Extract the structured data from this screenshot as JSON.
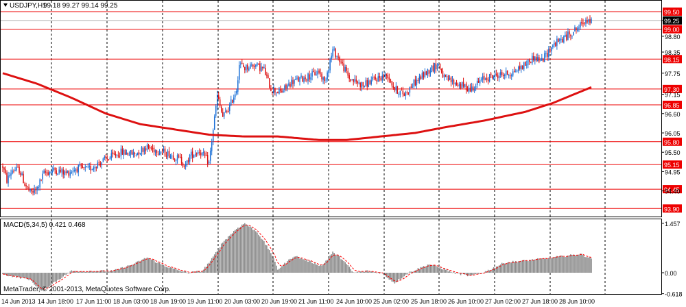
{
  "header": {
    "symbol": "USDJPY,H1",
    "ohlc": "99.18 99.27 99.14 99.25",
    "collapse_icon": "triangle-down-icon"
  },
  "macd": {
    "label": "MACD(5,34,5) 0.421 0.468",
    "copyright": "MetaTrader, © 2001-2013, MetaQuotes Software Corp.",
    "ticks": [
      {
        "value": 1.457,
        "label": "1.457"
      },
      {
        "value": 0.0,
        "label": "0.00"
      },
      {
        "value": -0.618,
        "label": "-0.618"
      }
    ]
  },
  "price_axis": {
    "tick_labels": [
      {
        "value": 99.25,
        "label": "99.25"
      },
      {
        "value": 98.8,
        "label": "98.80"
      },
      {
        "value": 98.35,
        "label": "98.35"
      },
      {
        "value": 97.75,
        "label": "97.75"
      },
      {
        "value": 97.15,
        "label": "97.15"
      },
      {
        "value": 96.6,
        "label": "96.60"
      },
      {
        "value": 96.05,
        "label": "96.05"
      },
      {
        "value": 95.5,
        "label": "95.50"
      },
      {
        "value": 94.95,
        "label": "94.95"
      },
      {
        "value": 94.4,
        "label": "94.40"
      }
    ],
    "levels": [
      {
        "value": 99.5,
        "label": "99.50"
      },
      {
        "value": 99.0,
        "label": "99.00"
      },
      {
        "value": 98.15,
        "label": "98.15"
      },
      {
        "value": 97.3,
        "label": "97.30"
      },
      {
        "value": 96.85,
        "label": "96.85"
      },
      {
        "value": 95.8,
        "label": "95.80"
      },
      {
        "value": 95.15,
        "label": "95.15"
      },
      {
        "value": 94.45,
        "label": "94.45"
      },
      {
        "value": 93.9,
        "label": "93.90"
      }
    ],
    "current": {
      "value": 99.25,
      "label": "99.25"
    }
  },
  "time_axis": {
    "labels": [
      "14 Jun 2013",
      "14 Jun 18:00",
      "17 Jun 11:00",
      "18 Jun 03:00",
      "18 Jun 19:00",
      "19 Jun 11:00",
      "20 Jun 03:00",
      "20 Jun 19:00",
      "21 Jun 11:00",
      "24 Jun 10:00",
      "25 Jun 02:00",
      "25 Jun 18:00",
      "26 Jun 10:00",
      "27 Jun 02:00",
      "27 Jun 18:00",
      "28 Jun 10:00"
    ]
  },
  "colors": {
    "bull": "#1a6fd6",
    "bear": "#dd1111",
    "ma": "#dd1111",
    "level": "#ee0000",
    "histogram": "#8c8c8c",
    "signal": "#ff0000",
    "grid": "#000000"
  },
  "chart_data": {
    "type": "candlestick",
    "timeframe": "H1",
    "price_range": [
      93.9,
      99.7
    ],
    "price_trend": [
      [
        0,
        95.1
      ],
      [
        3,
        94.7
      ],
      [
        7,
        95.0
      ],
      [
        12,
        95.0
      ],
      [
        16,
        94.6
      ],
      [
        20,
        94.35
      ],
      [
        24,
        94.4
      ],
      [
        30,
        94.9
      ],
      [
        38,
        95.0
      ],
      [
        46,
        94.9
      ],
      [
        54,
        95.05
      ],
      [
        62,
        95.0
      ],
      [
        70,
        95.2
      ],
      [
        78,
        95.35
      ],
      [
        86,
        95.5
      ],
      [
        96,
        95.45
      ],
      [
        104,
        95.65
      ],
      [
        113,
        95.55
      ],
      [
        121,
        95.45
      ],
      [
        129,
        95.3
      ],
      [
        133,
        95.1
      ],
      [
        136,
        95.4
      ],
      [
        143,
        95.55
      ],
      [
        150,
        95.2
      ],
      [
        156,
        97.1
      ],
      [
        160,
        96.5
      ],
      [
        165,
        96.8
      ],
      [
        170,
        97.3
      ],
      [
        172,
        98.0
      ],
      [
        176,
        97.9
      ],
      [
        183,
        98.0
      ],
      [
        190,
        97.85
      ],
      [
        195,
        97.3
      ],
      [
        202,
        97.2
      ],
      [
        210,
        97.5
      ],
      [
        218,
        97.6
      ],
      [
        225,
        97.7
      ],
      [
        230,
        97.8
      ],
      [
        234,
        97.5
      ],
      [
        240,
        98.4
      ],
      [
        244,
        98.2
      ],
      [
        252,
        97.6
      ],
      [
        262,
        97.4
      ],
      [
        272,
        97.6
      ],
      [
        280,
        97.7
      ],
      [
        285,
        97.3
      ],
      [
        292,
        97.15
      ],
      [
        300,
        97.5
      ],
      [
        312,
        97.9
      ],
      [
        317,
        98.0
      ],
      [
        321,
        97.6
      ],
      [
        330,
        97.45
      ],
      [
        340,
        97.3
      ],
      [
        350,
        97.6
      ],
      [
        360,
        97.7
      ],
      [
        370,
        97.75
      ],
      [
        380,
        98.0
      ],
      [
        386,
        98.2
      ],
      [
        392,
        98.1
      ],
      [
        400,
        98.55
      ],
      [
        410,
        98.8
      ],
      [
        420,
        99.1
      ],
      [
        424,
        99.3
      ],
      [
        428,
        99.2
      ]
    ],
    "moving_average": [
      [
        0,
        97.75
      ],
      [
        25,
        97.45
      ],
      [
        50,
        97.05
      ],
      [
        75,
        96.6
      ],
      [
        100,
        96.3
      ],
      [
        125,
        96.15
      ],
      [
        150,
        96.0
      ],
      [
        175,
        95.95
      ],
      [
        200,
        95.95
      ],
      [
        230,
        95.85
      ],
      [
        250,
        95.85
      ],
      [
        275,
        95.95
      ],
      [
        300,
        96.05
      ],
      [
        320,
        96.2
      ],
      [
        350,
        96.4
      ],
      [
        380,
        96.65
      ],
      [
        400,
        96.9
      ],
      [
        428,
        97.35
      ]
    ],
    "macd_histogram_trend": [
      [
        0,
        -0.05
      ],
      [
        20,
        -0.2
      ],
      [
        28,
        -0.55
      ],
      [
        35,
        -0.35
      ],
      [
        50,
        0.05
      ],
      [
        65,
        0.05
      ],
      [
        80,
        0.05
      ],
      [
        95,
        0.25
      ],
      [
        105,
        0.45
      ],
      [
        115,
        0.25
      ],
      [
        125,
        0.1
      ],
      [
        135,
        0.0
      ],
      [
        145,
        0.05
      ],
      [
        152,
        0.4
      ],
      [
        160,
        0.9
      ],
      [
        170,
        1.3
      ],
      [
        176,
        1.46
      ],
      [
        185,
        1.2
      ],
      [
        195,
        0.6
      ],
      [
        200,
        0.1
      ],
      [
        212,
        0.5
      ],
      [
        222,
        0.35
      ],
      [
        232,
        0.2
      ],
      [
        240,
        0.6
      ],
      [
        247,
        0.4
      ],
      [
        255,
        0.0
      ],
      [
        265,
        0.05
      ],
      [
        275,
        0.0
      ],
      [
        285,
        -0.3
      ],
      [
        295,
        0.0
      ],
      [
        310,
        0.25
      ],
      [
        318,
        0.15
      ],
      [
        328,
        0.0
      ],
      [
        340,
        -0.1
      ],
      [
        352,
        0.05
      ],
      [
        365,
        0.3
      ],
      [
        378,
        0.35
      ],
      [
        390,
        0.4
      ],
      [
        400,
        0.45
      ],
      [
        410,
        0.5
      ],
      [
        420,
        0.55
      ],
      [
        428,
        0.42
      ]
    ],
    "bars": 429
  }
}
